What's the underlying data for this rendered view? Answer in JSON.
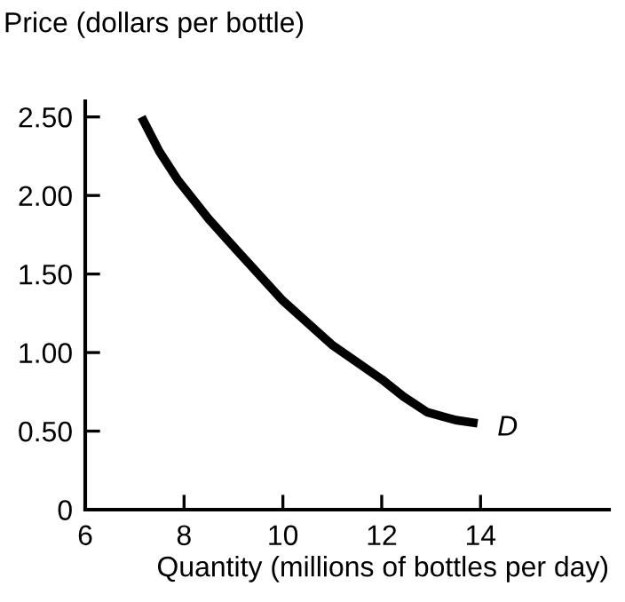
{
  "chart_data": {
    "type": "line",
    "xlabel": "Quantity (millions of bottles per day)",
    "ylabel": "Price (dollars per bottle)",
    "series": [
      {
        "color": "#000000",
        "x": [
          7.14,
          7.5,
          7.87,
          8.5,
          9.07,
          10.0,
          10.99,
          12.0,
          12.44,
          12.92,
          13.5,
          13.94
        ],
        "values": [
          2.5,
          2.28,
          2.1,
          1.85,
          1.65,
          1.33,
          1.05,
          0.83,
          0.72,
          0.62,
          0.57,
          0.55
        ]
      }
    ],
    "annotations": [
      "D"
    ],
    "xlim": [
      6,
      16.6
    ],
    "ylim": [
      0,
      2.6
    ],
    "xticks": [
      6,
      8,
      10,
      12,
      14
    ],
    "yticks": [
      0,
      {
        "value": 0.5,
        "label": "0.50"
      },
      {
        "value": 1,
        "label": "1.00"
      },
      {
        "value": 1.5,
        "label": "1.50"
      },
      {
        "value": 2,
        "label": "2.00"
      },
      {
        "value": 2.5,
        "label": "2.50"
      }
    ],
    "grid": false,
    "legend": false,
    "marker": "none",
    "line_style": "solid"
  }
}
